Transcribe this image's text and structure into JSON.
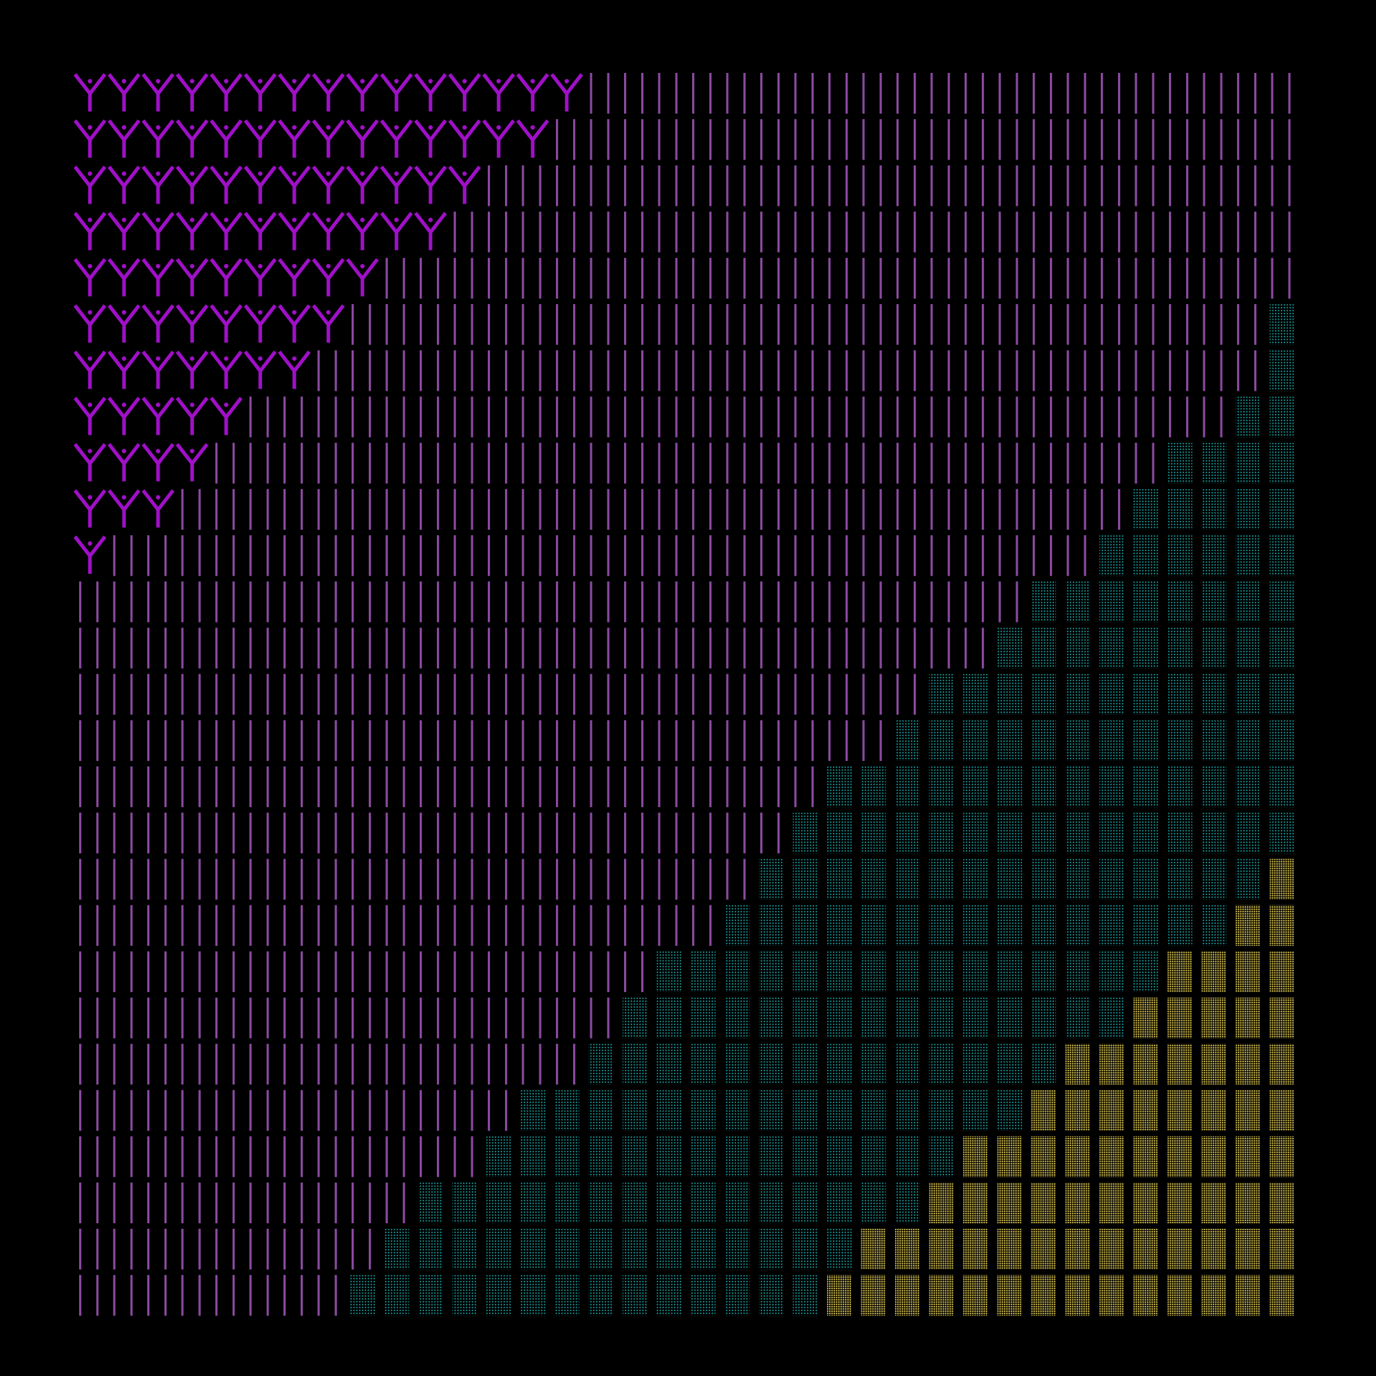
{
  "artwork": {
    "background_color": "#000000",
    "grid": {
      "columns": 36,
      "rows": 27
    },
    "glyph_colors": {
      "Y": "#a010c8",
      "bar": "#8a4aa0",
      "teal_dots": "#1aa6a6",
      "yellow_dots": "#c9b64a"
    },
    "y_row_counts": [
      15,
      14,
      12,
      11,
      9,
      8,
      7,
      5,
      4,
      3,
      1
    ],
    "teal_start_col_by_row": [
      36,
      36,
      36,
      36,
      36,
      35,
      35,
      34,
      32,
      31,
      30,
      28,
      27,
      25,
      24,
      22,
      21,
      20,
      19,
      17,
      16,
      15,
      13,
      12,
      10,
      9,
      8
    ],
    "yellow_start_col_by_row": [
      36,
      36,
      36,
      36,
      36,
      36,
      36,
      36,
      36,
      36,
      36,
      36,
      36,
      36,
      36,
      36,
      36,
      35,
      34,
      32,
      31,
      29,
      28,
      26,
      25,
      23,
      22
    ]
  }
}
